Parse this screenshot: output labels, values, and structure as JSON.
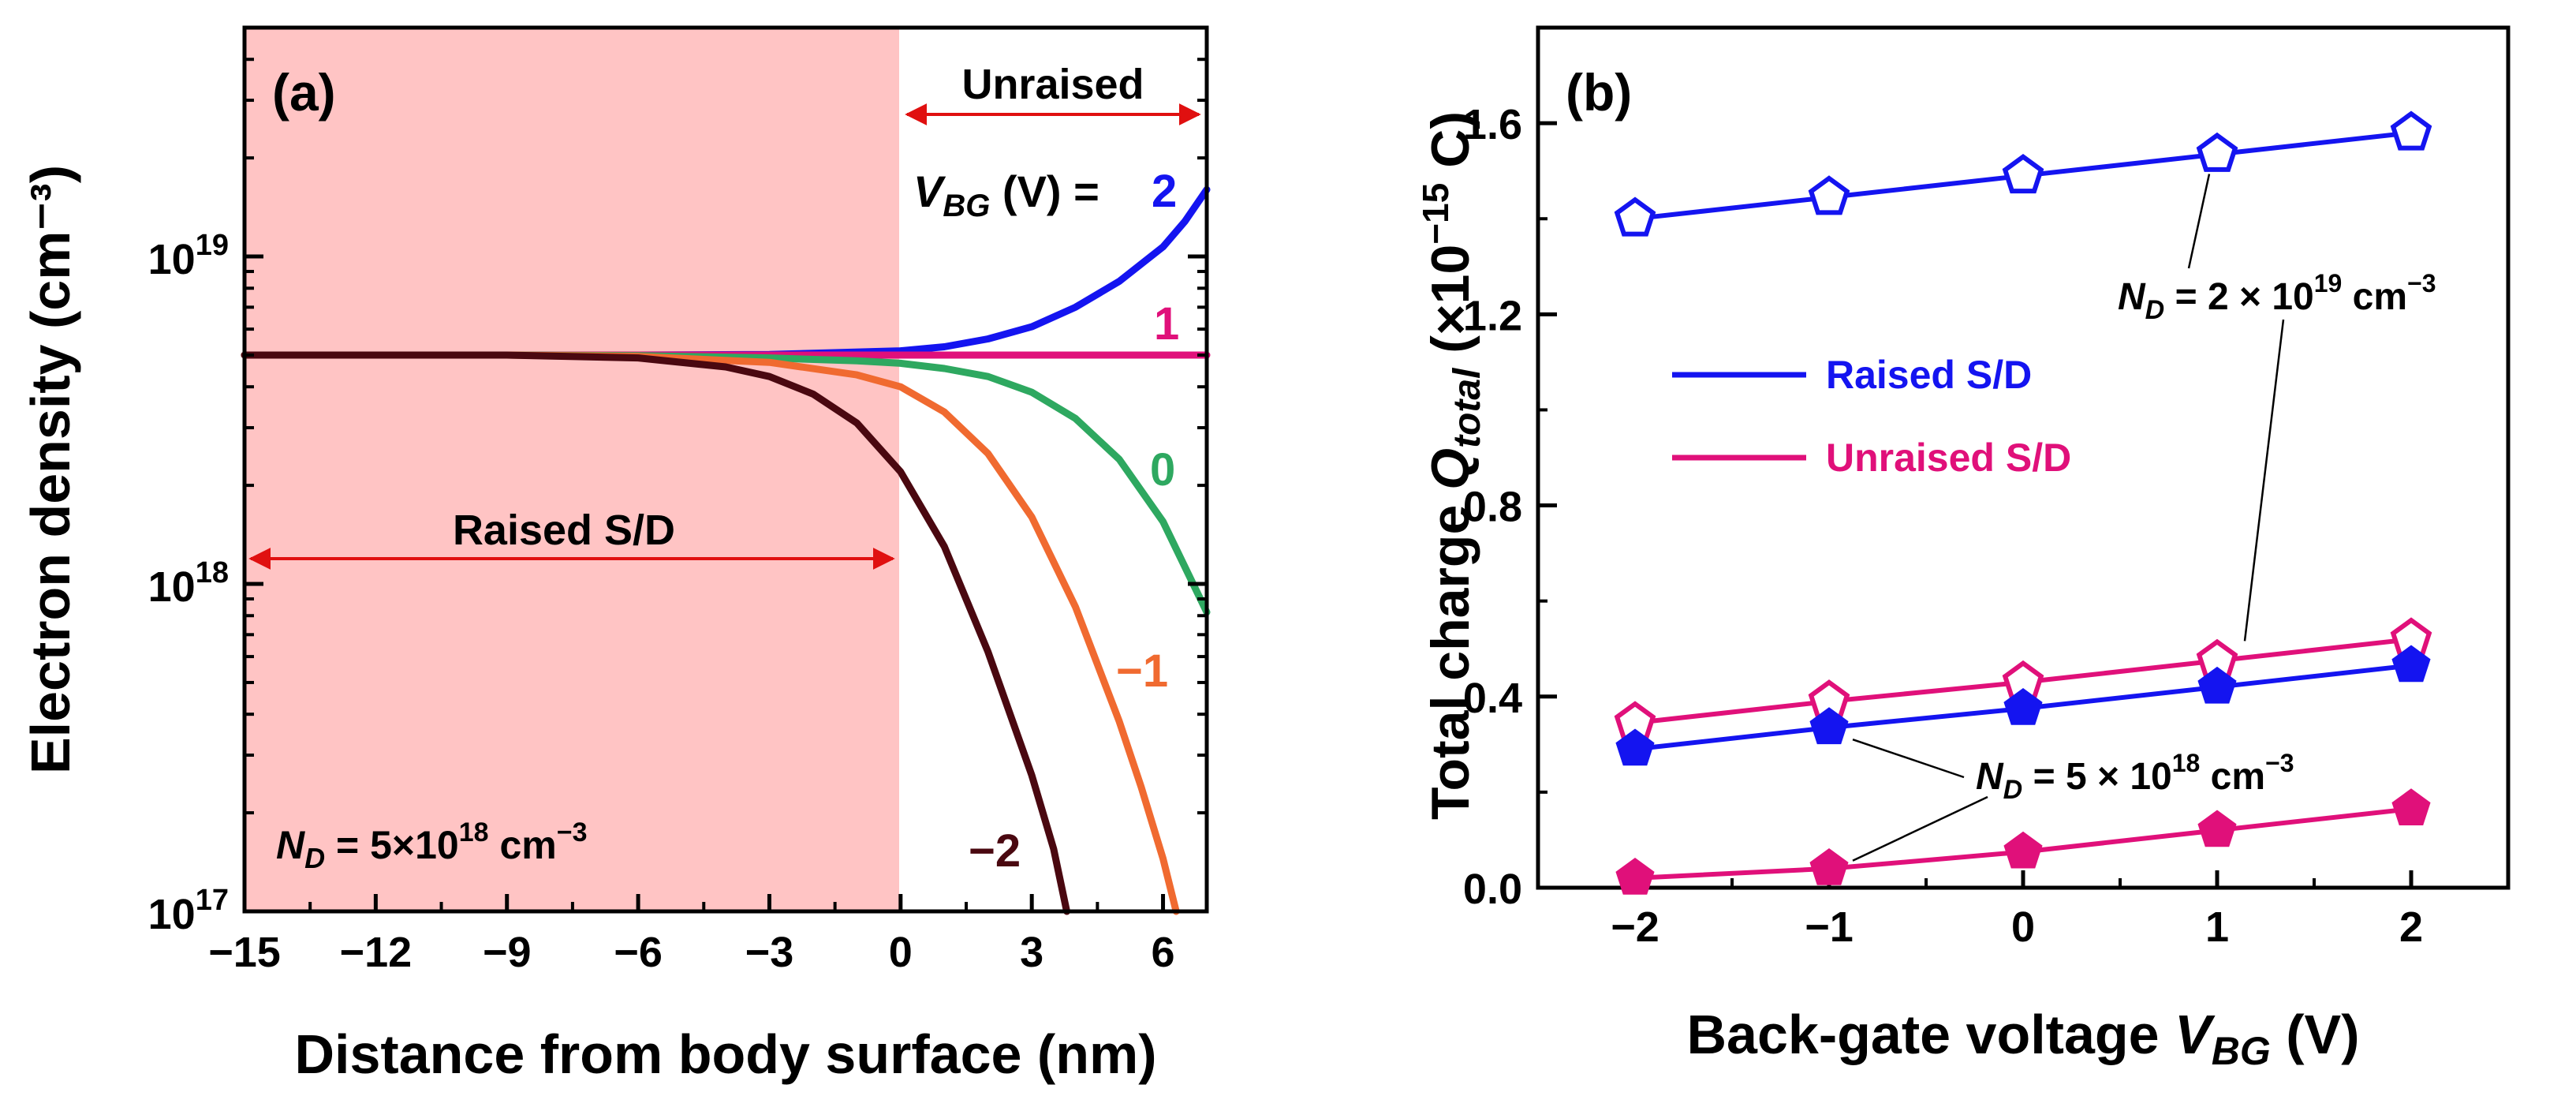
{
  "chart_data": [
    {
      "type": "line",
      "panel_label": "(a)",
      "xlabel": "Distance from body surface (nm)",
      "ylabel": "Electron density (cm⁻³)",
      "xlim": [
        -15,
        7
      ],
      "ylim": [
        1e+17,
        5e+19
      ],
      "yscale": "log",
      "xticks": [
        -15,
        -12,
        -9,
        -6,
        -3,
        0,
        3,
        6
      ],
      "xtick_labels": [
        "−15",
        "−12",
        "−9",
        "−6",
        "−3",
        "0",
        "3",
        "6"
      ],
      "yticks": [
        1e+17,
        1e+18,
        1e+19
      ],
      "ytick_labels": [
        {
          "base": "10",
          "exp": "17"
        },
        {
          "base": "10",
          "exp": "18"
        },
        {
          "base": "10",
          "exp": "19"
        }
      ],
      "shaded_region": {
        "x": [
          -15,
          0
        ],
        "color": "#ffc4c4"
      },
      "annotations": {
        "raised": "Raised S/D",
        "unraised": "Unraised",
        "vbg_prefix": "V",
        "vbg_sub": "BG",
        "vbg_suffix": " (V) =",
        "nd_prefix": "N",
        "nd_sub": "D",
        "nd_text": " = 5×10",
        "nd_exp": "18",
        "nd_unit": " cm",
        "nd_unit_exp": "−3"
      },
      "series": [
        {
          "name": "2",
          "label": "2",
          "color": "#1414f0",
          "x": [
            -15,
            -9,
            -6,
            -3,
            0,
            1,
            2,
            3,
            4,
            5,
            6,
            6.5,
            7
          ],
          "y": [
            5e+18,
            5e+18,
            5e+18,
            5.02e+18,
            5.15e+18,
            5.3e+18,
            5.6e+18,
            6.1e+18,
            7e+18,
            8.4e+18,
            1.07e+19,
            1.28e+19,
            1.6e+19
          ]
        },
        {
          "name": "1",
          "label": "1",
          "color": "#e0107a",
          "x": [
            -15,
            -9,
            -6,
            -3,
            0,
            3,
            6,
            7
          ],
          "y": [
            5e+18,
            5e+18,
            5e+18,
            5e+18,
            5e+18,
            5e+18,
            5e+18,
            5e+18
          ]
        },
        {
          "name": "0",
          "label": "0",
          "color": "#2ea860",
          "x": [
            -15,
            -9,
            -6,
            -3,
            -1,
            0,
            1,
            2,
            3,
            4,
            5,
            6,
            7
          ],
          "y": [
            5e+18,
            5e+18,
            4.98e+18,
            4.9e+18,
            4.8e+18,
            4.72e+18,
            4.55e+18,
            4.3e+18,
            3.85e+18,
            3.2e+18,
            2.4e+18,
            1.55e+18,
            8.2e+17
          ]
        },
        {
          "name": "−1",
          "label": "−1",
          "color": "#f06a30",
          "x": [
            -15,
            -9,
            -6,
            -3,
            -1,
            0,
            1,
            2,
            3,
            4,
            5,
            5.5,
            6,
            6.3
          ],
          "y": [
            5e+18,
            5e+18,
            4.95e+18,
            4.75e+18,
            4.35e+18,
            4e+18,
            3.35e+18,
            2.5e+18,
            1.6e+18,
            8.5e+17,
            3.8e+17,
            2.4e+17,
            1.45e+17,
            1e+17
          ]
        },
        {
          "name": "−2",
          "label": "−2",
          "color": "#4a0810",
          "x": [
            -15,
            -9,
            -6,
            -4,
            -3,
            -2,
            -1,
            0,
            1,
            2,
            3,
            3.5,
            3.8
          ],
          "y": [
            5e+18,
            5e+18,
            4.9e+18,
            4.6e+18,
            4.3e+18,
            3.8e+18,
            3.1e+18,
            2.2e+18,
            1.3e+18,
            6.2e+17,
            2.6e+17,
            1.55e+17,
            1e+17
          ]
        }
      ]
    },
    {
      "type": "line",
      "panel_label": "(b)",
      "xlabel_prefix": "Back-gate voltage ",
      "xlabel_var": "V",
      "xlabel_sub": "BG",
      "xlabel_suffix": " (V)",
      "ylabel_prefix": "Total charge ",
      "ylabel_var": "Q",
      "ylabel_sub": "total",
      "ylabel_suffix": " (×10",
      "ylabel_exp": "−15",
      "ylabel_end": " C)",
      "xlim": [
        -2.5,
        2.5
      ],
      "ylim": [
        0,
        1.8
      ],
      "xticks": [
        -2,
        -1,
        0,
        1,
        2
      ],
      "xtick_labels": [
        "−2",
        "−1",
        "0",
        "1",
        "2"
      ],
      "yticks": [
        0.0,
        0.4,
        0.8,
        1.2,
        1.6
      ],
      "ytick_labels": [
        "0.0",
        "0.4",
        "0.8",
        "1.2",
        "1.6"
      ],
      "x": [
        -2,
        -1,
        0,
        1,
        2
      ],
      "legend": [
        {
          "label": "Raised S/D",
          "color": "#1414f0"
        },
        {
          "label": "Unraised S/D",
          "color": "#e0107a"
        }
      ],
      "annotations": {
        "nd_high_prefix": "N",
        "nd_high_sub": "D",
        "nd_high_text": " = 2 × 10",
        "nd_high_exp": "19",
        "nd_high_unit": " cm",
        "nd_high_unit_exp": "−3",
        "nd_low_prefix": "N",
        "nd_low_sub": "D",
        "nd_low_text": " = 5 × 10",
        "nd_low_exp": "18",
        "nd_low_unit": " cm",
        "nd_low_unit_exp": "−3"
      },
      "series": [
        {
          "name": "Raised S/D, N_D = 2e19",
          "color": "#1414f0",
          "marker": "pentagon-open",
          "values": [
            1.4,
            1.445,
            1.49,
            1.535,
            1.58
          ]
        },
        {
          "name": "Unraised S/D, N_D = 2e19",
          "color": "#e0107a",
          "marker": "pentagon-open",
          "values": [
            0.345,
            0.39,
            0.43,
            0.475,
            0.52
          ]
        },
        {
          "name": "Raised S/D, N_D = 5e18",
          "color": "#1414f0",
          "marker": "pentagon-filled",
          "values": [
            0.29,
            0.335,
            0.375,
            0.42,
            0.465
          ]
        },
        {
          "name": "Unraised S/D, N_D = 5e18",
          "color": "#e0107a",
          "marker": "pentagon-filled",
          "values": [
            0.02,
            0.04,
            0.075,
            0.12,
            0.165
          ]
        }
      ]
    }
  ]
}
